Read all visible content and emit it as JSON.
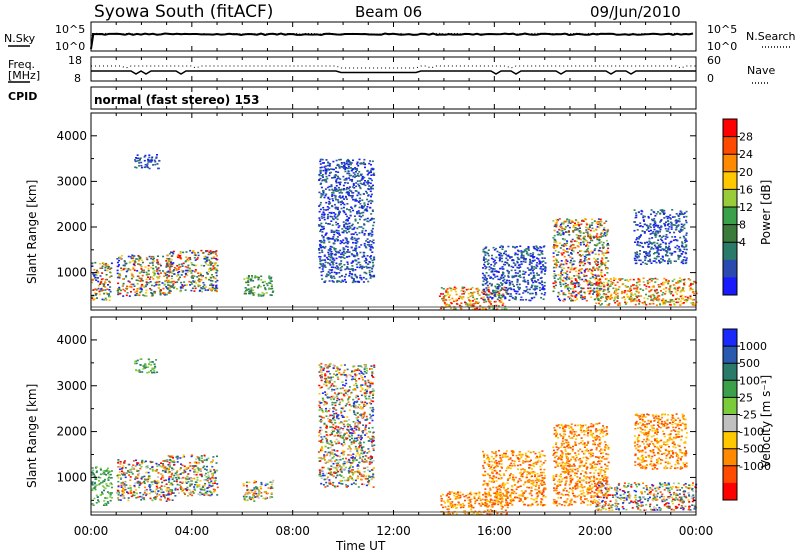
{
  "header": {
    "station": "Syowa South (fitACF)",
    "beam": "Beam 06",
    "date": "09/Jun/2010"
  },
  "noise_panel": {
    "left_label": "N.Sky",
    "left_ticks": [
      "10^5",
      "10^0"
    ],
    "right_ticks": [
      "10^5",
      "10^0"
    ],
    "right_label": "N.Search"
  },
  "freq_panel": {
    "left_label_1": "Freq.",
    "left_label_2": "[MHz]",
    "left_ticks": [
      "18",
      "8"
    ],
    "right_ticks": [
      "60",
      "0"
    ],
    "right_label": "Nave"
  },
  "cpid_panel": {
    "label": "CPID",
    "value": "normal (fast stereo) 153"
  },
  "chart_data": [
    {
      "type": "heatmap",
      "quantity": "power",
      "ylabel": "Slant Range [km]",
      "xlabel": "Time UT",
      "xlim_hours": [
        0,
        24
      ],
      "ylim": [
        180,
        4500
      ],
      "yticks": [
        "1000",
        "2000",
        "3000",
        "4000"
      ],
      "xtick_labels": [
        "00:00",
        "04:00",
        "08:00",
        "12:00",
        "16:00",
        "20:00",
        "00:00"
      ],
      "colorbar_label": "Power [dB]",
      "colorbar_ticks": [
        "28",
        "24",
        "20",
        "16",
        "12",
        "8",
        "4"
      ],
      "colorbar_colors": [
        "#ff0000",
        "#ff4a00",
        "#ff8a00",
        "#ffc800",
        "#9acc3a",
        "#3aa04a",
        "#3a7a3a",
        "#2a7a6a",
        "#2a4ab0",
        "#1a1aff"
      ],
      "scatter_clusters": [
        {
          "t": [
            0.0,
            0.8
          ],
          "r": [
            400,
            1250
          ],
          "level": "mixed"
        },
        {
          "t": [
            1.0,
            3.2
          ],
          "r": [
            500,
            1400
          ],
          "level": "mixed"
        },
        {
          "t": [
            3.0,
            5.0
          ],
          "r": [
            600,
            1500
          ],
          "level": "mixed"
        },
        {
          "t": [
            1.7,
            2.7
          ],
          "r": [
            3300,
            3600
          ],
          "level": "low"
        },
        {
          "t": [
            6.0,
            7.2
          ],
          "r": [
            500,
            950
          ],
          "level": "mid"
        },
        {
          "t": [
            9.0,
            11.2
          ],
          "r": [
            800,
            3500
          ],
          "level": "low"
        },
        {
          "t": [
            13.8,
            16.5
          ],
          "r": [
            200,
            700
          ],
          "level": "high"
        },
        {
          "t": [
            15.5,
            18.0
          ],
          "r": [
            400,
            1600
          ],
          "level": "low"
        },
        {
          "t": [
            18.3,
            20.5
          ],
          "r": [
            400,
            2200
          ],
          "level": "mixed"
        },
        {
          "t": [
            20.0,
            24.0
          ],
          "r": [
            300,
            900
          ],
          "level": "high"
        },
        {
          "t": [
            21.5,
            23.6
          ],
          "r": [
            1200,
            2400
          ],
          "level": "low"
        }
      ]
    },
    {
      "type": "heatmap",
      "quantity": "velocity",
      "ylabel": "Slant Range [km]",
      "xlabel": "Time UT",
      "xlim_hours": [
        0,
        24
      ],
      "ylim": [
        180,
        4500
      ],
      "yticks": [
        "1000",
        "2000",
        "3000",
        "4000"
      ],
      "xtick_labels": [
        "00:00",
        "04:00",
        "08:00",
        "12:00",
        "16:00",
        "20:00",
        "00:00"
      ],
      "colorbar_label": "Velocity [m s⁻¹]",
      "colorbar_ticks": [
        "1000",
        "500",
        "100",
        "25",
        "-25",
        "-100",
        "-500",
        "-1000"
      ],
      "colorbar_colors": [
        "#1a2aff",
        "#2a5ab0",
        "#2a7a6a",
        "#3aa04a",
        "#7acc3a",
        "#c0c0c0",
        "#ffc800",
        "#ff8a00",
        "#ff4a00",
        "#ff0000"
      ],
      "scatter_clusters": [
        {
          "t": [
            0.0,
            0.8
          ],
          "r": [
            400,
            1250
          ],
          "level": "positive"
        },
        {
          "t": [
            1.0,
            3.2
          ],
          "r": [
            500,
            1400
          ],
          "level": "mixed"
        },
        {
          "t": [
            3.0,
            5.0
          ],
          "r": [
            600,
            1500
          ],
          "level": "mixed"
        },
        {
          "t": [
            1.7,
            2.7
          ],
          "r": [
            3300,
            3600
          ],
          "level": "positive"
        },
        {
          "t": [
            6.0,
            7.2
          ],
          "r": [
            500,
            950
          ],
          "level": "mixed"
        },
        {
          "t": [
            9.0,
            11.2
          ],
          "r": [
            800,
            3500
          ],
          "level": "mixed"
        },
        {
          "t": [
            13.8,
            16.5
          ],
          "r": [
            200,
            700
          ],
          "level": "negative"
        },
        {
          "t": [
            15.5,
            18.0
          ],
          "r": [
            400,
            1600
          ],
          "level": "negative"
        },
        {
          "t": [
            18.3,
            20.5
          ],
          "r": [
            400,
            2200
          ],
          "level": "negative"
        },
        {
          "t": [
            20.0,
            24.0
          ],
          "r": [
            300,
            900
          ],
          "level": "mixed"
        },
        {
          "t": [
            21.5,
            23.6
          ],
          "r": [
            1200,
            2400
          ],
          "level": "negative"
        }
      ]
    }
  ]
}
